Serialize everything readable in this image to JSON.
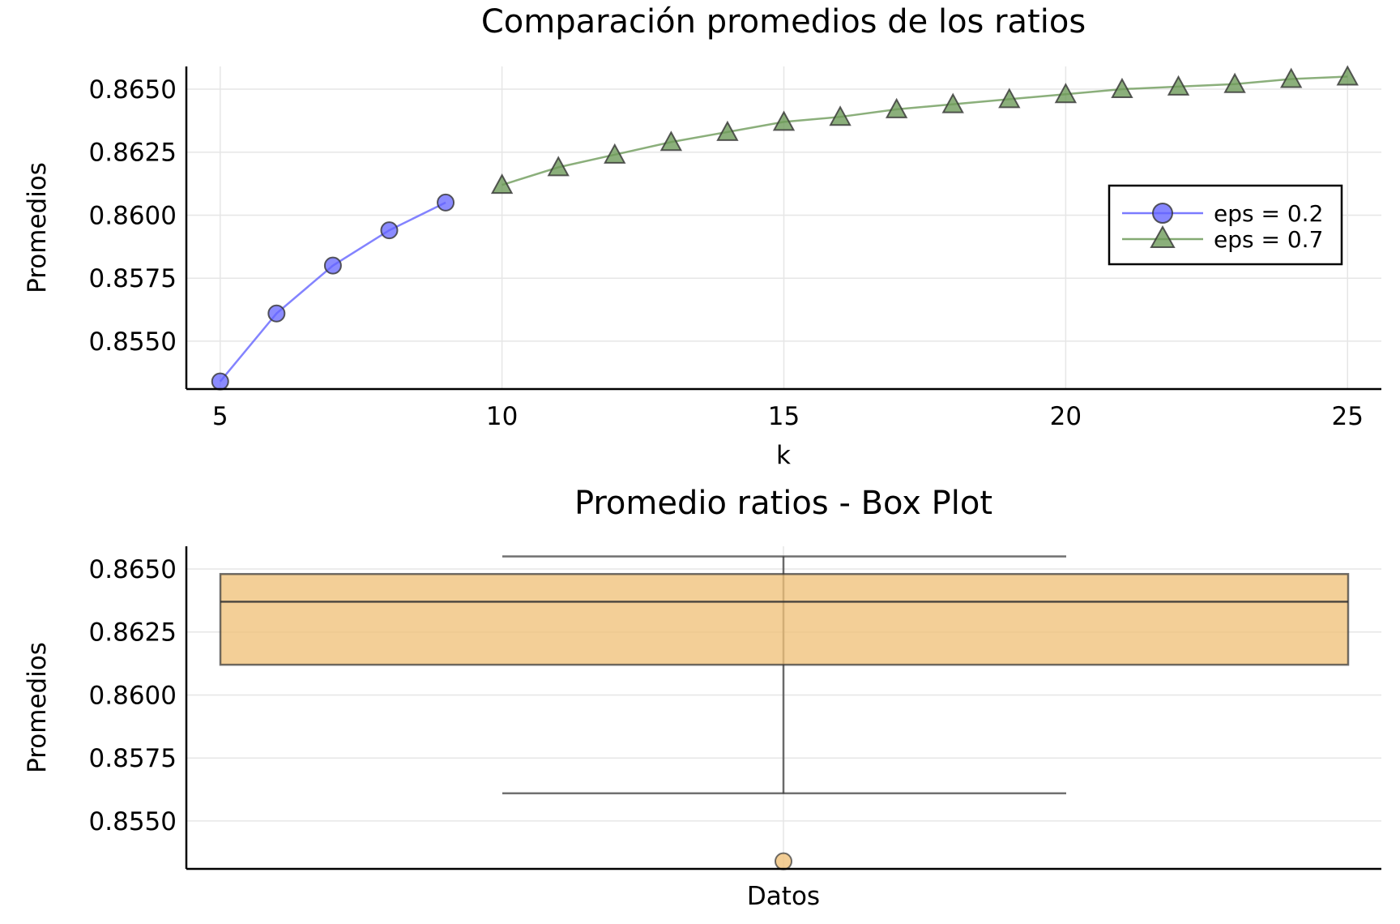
{
  "chart_data": [
    {
      "type": "line",
      "title": "Comparación promedios de los ratios",
      "xlabel": "k",
      "ylabel": "Promedios",
      "xlim": [
        4.4,
        25.6
      ],
      "ylim": [
        0.8531,
        0.8659
      ],
      "xticks": [
        5,
        10,
        15,
        20,
        25
      ],
      "yticks": [
        0.855,
        0.8575,
        0.86,
        0.8625,
        0.865
      ],
      "ytick_labels": [
        "0.8550",
        "0.8575",
        "0.8600",
        "0.8625",
        "0.8650"
      ],
      "grid": true,
      "legend": "right",
      "series": [
        {
          "name": "eps = 0.2",
          "marker": "circle",
          "color": "#6464ff",
          "x": [
            5,
            6,
            7,
            8,
            9
          ],
          "y": [
            0.8534,
            0.8561,
            0.858,
            0.8594,
            0.8605
          ]
        },
        {
          "name": "eps = 0.7",
          "marker": "triangle",
          "color": "#6e9b5a",
          "x": [
            10,
            11,
            12,
            13,
            14,
            15,
            16,
            17,
            18,
            19,
            20,
            21,
            22,
            23,
            24,
            25
          ],
          "y": [
            0.8612,
            0.8619,
            0.8624,
            0.8629,
            0.8633,
            0.8637,
            0.8639,
            0.8642,
            0.8644,
            0.8646,
            0.8648,
            0.865,
            0.8651,
            0.8652,
            0.8654,
            0.8655
          ]
        }
      ]
    },
    {
      "type": "box",
      "title": "Promedio ratios - Box Plot",
      "xlabel": "",
      "ylabel": "Promedios",
      "category": "Datos",
      "ylim": [
        0.8531,
        0.8659
      ],
      "yticks": [
        0.855,
        0.8575,
        0.86,
        0.8625,
        0.865
      ],
      "ytick_labels": [
        "0.8550",
        "0.8575",
        "0.8600",
        "0.8625",
        "0.8650"
      ],
      "grid": true,
      "color": "#f0c27a",
      "box": {
        "q1": 0.8612,
        "median": 0.8637,
        "q3": 0.8648,
        "whisker_low": 0.8561,
        "whisker_high": 0.8655,
        "outliers": [
          0.8534
        ]
      }
    }
  ]
}
